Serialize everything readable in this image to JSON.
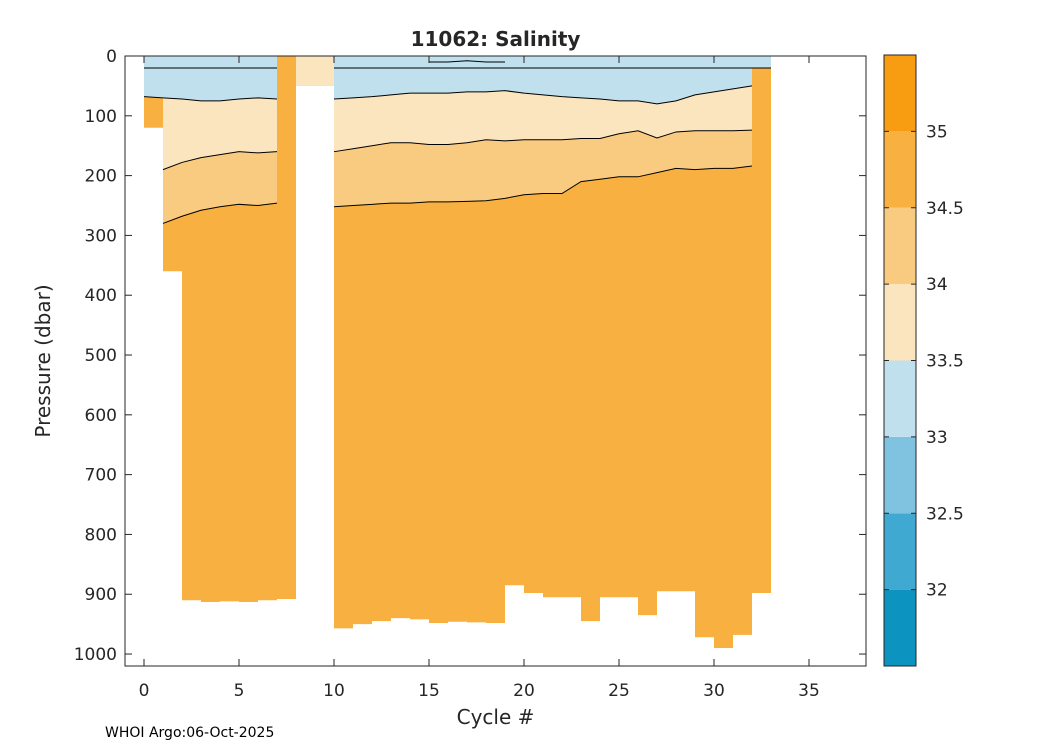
{
  "chart_data": {
    "type": "contour",
    "title": "11062:  Salinity",
    "xlabel": "Cycle #",
    "ylabel": "Pressure (dbar)",
    "xlim": [
      -1,
      38
    ],
    "ylim": [
      1020,
      0
    ],
    "x_ticks": [
      0,
      5,
      10,
      15,
      20,
      25,
      30,
      35
    ],
    "y_ticks": [
      0,
      100,
      200,
      300,
      400,
      500,
      600,
      700,
      800,
      900,
      1000
    ],
    "colorbar": {
      "range": [
        31.5,
        35.5
      ],
      "tick_values": [
        32,
        32.5,
        33,
        33.5,
        34,
        34.5,
        35
      ],
      "tick_labels": [
        "32",
        "32.5",
        "33",
        "33.5",
        "34",
        "34.5",
        "35"
      ],
      "bands": [
        {
          "from": 31.5,
          "to": 32.0,
          "color": "#0c93c0"
        },
        {
          "from": 32.0,
          "to": 32.5,
          "color": "#40a9d2"
        },
        {
          "from": 32.5,
          "to": 33.0,
          "color": "#80c3e0"
        },
        {
          "from": 33.0,
          "to": 33.5,
          "color": "#c0e0ee"
        },
        {
          "from": 33.5,
          "to": 34.0,
          "color": "#fbe5bf"
        },
        {
          "from": 34.0,
          "to": 34.5,
          "color": "#f9cb80"
        },
        {
          "from": 34.5,
          "to": 35.0,
          "color": "#f8b140"
        },
        {
          "from": 35.0,
          "to": 35.5,
          "color": "#f89c12"
        }
      ]
    },
    "cycles": [
      0,
      1,
      2,
      3,
      4,
      5,
      6,
      7,
      8,
      10,
      11,
      12,
      13,
      14,
      15,
      16,
      17,
      18,
      19,
      20,
      21,
      22,
      23,
      24,
      25,
      26,
      27,
      28,
      29,
      30,
      31,
      32,
      33
    ],
    "max_pressure": [
      120,
      360,
      910,
      913,
      912,
      913,
      910,
      908,
      908,
      957,
      950,
      945,
      940,
      942,
      948,
      946,
      947,
      948,
      885,
      898,
      905,
      905,
      945,
      905,
      905,
      935,
      895,
      895,
      972,
      990,
      968,
      898,
      898
    ],
    "contour_34.5": [
      null,
      280,
      268,
      258,
      252,
      248,
      250,
      246,
      null,
      252,
      250,
      248,
      246,
      246,
      244,
      244,
      243,
      242,
      238,
      232,
      230,
      230,
      210,
      206,
      202,
      202,
      195,
      188,
      190,
      188,
      188,
      184,
      null
    ],
    "contour_34.0": [
      null,
      190,
      178,
      170,
      165,
      160,
      162,
      160,
      null,
      160,
      155,
      150,
      145,
      145,
      148,
      148,
      145,
      140,
      142,
      140,
      140,
      140,
      138,
      138,
      130,
      125,
      137,
      127,
      125,
      125,
      125,
      124,
      null
    ],
    "contour_33.5": [
      68,
      70,
      72,
      75,
      75,
      72,
      70,
      72,
      null,
      72,
      70,
      68,
      65,
      62,
      62,
      62,
      60,
      60,
      58,
      62,
      65,
      68,
      70,
      72,
      75,
      75,
      80,
      75,
      65,
      60,
      55,
      50,
      null
    ],
    "contour_33.0": [
      null,
      null,
      null,
      null,
      null,
      null,
      null,
      null,
      null,
      null,
      null,
      null,
      null,
      null,
      10,
      10,
      8,
      10,
      10,
      null,
      null,
      null,
      null,
      null,
      null,
      null,
      null,
      null,
      null,
      null,
      null,
      null,
      null
    ],
    "gap_region": {
      "x_from": 8,
      "x_to": 10,
      "surface_pressure": 50
    },
    "footer": "WHOI Argo:06-Oct-2025"
  }
}
